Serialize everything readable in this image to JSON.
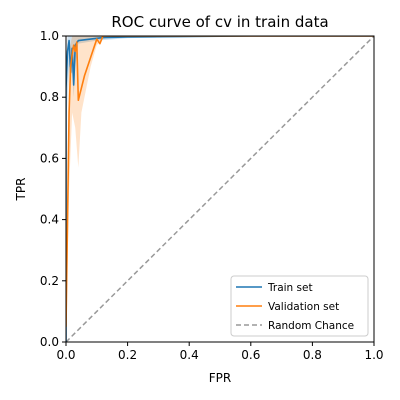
{
  "chart_data": {
    "type": "line",
    "title": "ROC curve of cv in train data",
    "xlabel": "FPR",
    "ylabel": "TPR",
    "xlim": [
      0.0,
      1.0
    ],
    "ylim": [
      0.0,
      1.0
    ],
    "xticks": [
      "0.0",
      "0.2",
      "0.4",
      "0.6",
      "0.8",
      "1.0"
    ],
    "yticks": [
      "0.0",
      "0.2",
      "0.4",
      "0.6",
      "0.8",
      "1.0"
    ],
    "grid": false,
    "legend_position": "bottom-right",
    "series": [
      {
        "name": "Train set",
        "color": "#1f77b4",
        "points": [
          [
            0.0,
            0.0
          ],
          [
            0.0,
            0.83
          ],
          [
            0.005,
            0.95
          ],
          [
            0.01,
            0.985
          ],
          [
            0.015,
            0.88
          ],
          [
            0.02,
            0.96
          ],
          [
            0.025,
            0.84
          ],
          [
            0.03,
            0.97
          ],
          [
            0.04,
            0.985
          ],
          [
            0.08,
            0.99
          ],
          [
            0.12,
            0.995
          ],
          [
            0.2,
            0.997
          ],
          [
            0.6,
            1.0
          ],
          [
            1.0,
            1.0
          ]
        ],
        "band_upper": [
          [
            0.0,
            0.0
          ],
          [
            0.0,
            0.9
          ],
          [
            0.005,
            1.0
          ],
          [
            1.0,
            1.0
          ]
        ],
        "band_lower": [
          [
            0.0,
            0.0
          ],
          [
            0.0,
            0.7
          ],
          [
            0.01,
            0.9
          ],
          [
            0.02,
            0.88
          ],
          [
            0.025,
            0.8
          ],
          [
            0.03,
            0.9
          ],
          [
            0.04,
            0.975
          ],
          [
            0.1,
            0.985
          ],
          [
            0.2,
            0.993
          ],
          [
            0.6,
            1.0
          ],
          [
            1.0,
            1.0
          ]
        ]
      },
      {
        "name": "Validation set",
        "color": "#ff7f0e",
        "points": [
          [
            0.0,
            0.05
          ],
          [
            0.01,
            0.75
          ],
          [
            0.015,
            0.9
          ],
          [
            0.02,
            0.94
          ],
          [
            0.025,
            0.97
          ],
          [
            0.03,
            0.95
          ],
          [
            0.035,
            0.98
          ],
          [
            0.04,
            0.79
          ],
          [
            0.05,
            0.83
          ],
          [
            0.06,
            0.87
          ],
          [
            0.08,
            0.93
          ],
          [
            0.1,
            0.99
          ],
          [
            0.11,
            0.975
          ],
          [
            0.12,
            1.0
          ],
          [
            0.15,
            1.0
          ],
          [
            1.0,
            1.0
          ]
        ],
        "band_upper": [
          [
            0.0,
            0.1
          ],
          [
            0.01,
            0.95
          ],
          [
            0.02,
            1.0
          ],
          [
            1.0,
            1.0
          ]
        ],
        "band_lower": [
          [
            0.0,
            0.0
          ],
          [
            0.01,
            0.5
          ],
          [
            0.02,
            0.75
          ],
          [
            0.03,
            0.7
          ],
          [
            0.04,
            0.57
          ],
          [
            0.05,
            0.75
          ],
          [
            0.08,
            0.9
          ],
          [
            0.1,
            0.97
          ],
          [
            0.12,
            0.99
          ],
          [
            0.15,
            1.0
          ],
          [
            1.0,
            1.0
          ]
        ]
      },
      {
        "name": "Random Chance",
        "color": "#999999",
        "dashed": true,
        "points": [
          [
            0.0,
            0.0
          ],
          [
            1.0,
            1.0
          ]
        ]
      }
    ]
  }
}
